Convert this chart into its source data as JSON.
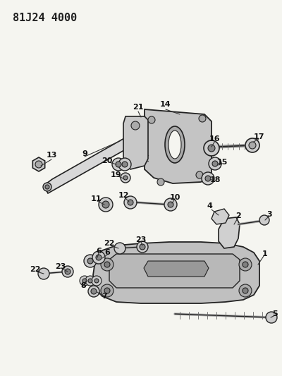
{
  "title": "81J24 4000",
  "bg_color": "#f5f5f0",
  "fig_width": 4.0,
  "fig_height": 5.33,
  "dpi": 100,
  "line_color": "#222222",
  "line_width": 1.0,
  "label_fontsize": 8.0,
  "title_fontsize": 11
}
